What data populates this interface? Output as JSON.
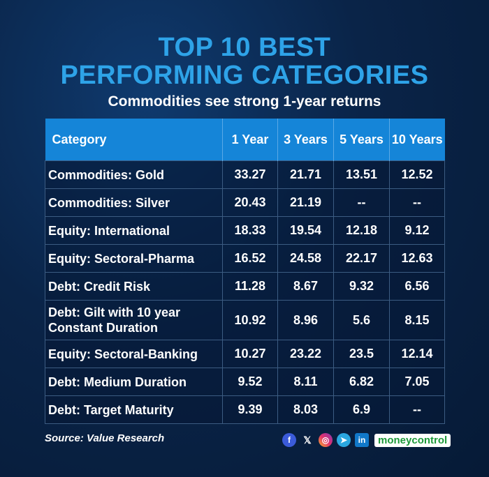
{
  "title_line1": "TOP 10 BEST",
  "title_line2": "PERFORMING CATEGORIES",
  "subtitle": "Commodities see strong 1-year returns",
  "table": {
    "headers": [
      "Category",
      "1 Year",
      "3 Years",
      "5 Years",
      "10 Years"
    ],
    "rows": [
      [
        "Commodities: Gold",
        "33.27",
        "21.71",
        "13.51",
        "12.52"
      ],
      [
        "Commodities: Silver",
        "20.43",
        "21.19",
        "--",
        "--"
      ],
      [
        "Equity: International",
        "18.33",
        "19.54",
        "12.18",
        "9.12"
      ],
      [
        "Equity: Sectoral-Pharma",
        "16.52",
        "24.58",
        "22.17",
        "12.63"
      ],
      [
        "Debt: Credit Risk",
        "11.28",
        "8.67",
        "9.32",
        "6.56"
      ],
      [
        "Debt: Gilt with 10 year Constant Duration",
        "10.92",
        "8.96",
        "5.6",
        "8.15"
      ],
      [
        "Equity: Sectoral-Banking",
        "10.27",
        "23.22",
        "23.5",
        "12.14"
      ],
      [
        "Debt: Medium Duration",
        "9.52",
        "8.11",
        "6.82",
        "7.05"
      ],
      [
        "Debt: Target Maturity",
        "9.39",
        "8.03",
        "6.9",
        "--"
      ]
    ]
  },
  "source": "Source: Value Research",
  "social_icons": [
    "facebook-icon",
    "x-icon",
    "instagram-icon",
    "telegram-icon",
    "linkedin-icon"
  ],
  "social_glyphs": {
    "facebook": "f",
    "x": "𝕏",
    "instagram": "◎",
    "telegram": "➤",
    "linkedin": "in"
  },
  "brand": "moneycontrol",
  "colors": {
    "title": "#2ea3e8",
    "header_bg": "#1585d8",
    "background": "#0a2448",
    "brand_green": "#1e9a3a"
  }
}
